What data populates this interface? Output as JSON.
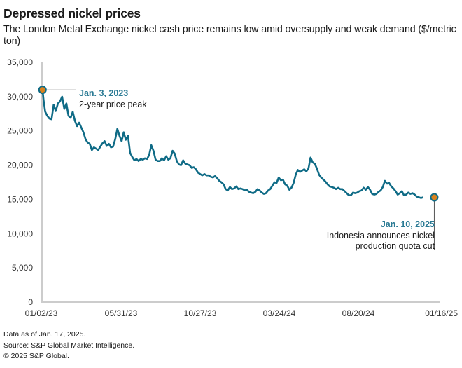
{
  "header": {
    "title": "Depressed nickel prices",
    "subtitle": "The London Metal Exchange nickel cash price remains low amid oversupply and weak demand ($/metric ton)"
  },
  "footer": {
    "line1": "Data as of Jan. 17, 2025.",
    "line2": "Source: S&P Global Market Intelligence.",
    "line3": "© 2025 S&P Global."
  },
  "colors": {
    "line": "#0f6b86",
    "marker_fill": "#d9821e",
    "marker_stroke": "#0f6b86",
    "axis": "#cccccc",
    "annotation_date": "#2a7a94"
  },
  "chart_data": {
    "type": "line",
    "title": "Depressed nickel prices",
    "subtitle": "The London Metal Exchange nickel cash price remains low amid oversupply and weak demand ($/metric ton)",
    "xlabel": "",
    "ylabel": "$/metric ton",
    "ylim": [
      0,
      35000
    ],
    "yticks": [
      0,
      5000,
      10000,
      15000,
      20000,
      25000,
      30000,
      35000
    ],
    "ytick_labels": [
      "0",
      "5,000",
      "10,000",
      "15,000",
      "20,000",
      "25,000",
      "30,000",
      "35,000"
    ],
    "xtick_labels": [
      "01/02/23",
      "05/31/23",
      "10/27/23",
      "03/24/24",
      "08/20/24",
      "01/16/25"
    ],
    "xlim_days": [
      0,
      745
    ],
    "grid": false,
    "legend": "none",
    "series": [
      {
        "name": "LME nickel cash price",
        "x_days": [
          1,
          3,
          6,
          10,
          14,
          18,
          22,
          26,
          30,
          34,
          38,
          42,
          46,
          50,
          54,
          58,
          62,
          66,
          70,
          74,
          78,
          82,
          86,
          90,
          94,
          98,
          102,
          106,
          110,
          114,
          118,
          122,
          126,
          130,
          134,
          138,
          142,
          146,
          150,
          154,
          158,
          162,
          166,
          170,
          174,
          178,
          182,
          186,
          190,
          194,
          198,
          202,
          206,
          210,
          214,
          218,
          222,
          226,
          230,
          234,
          238,
          242,
          246,
          250,
          254,
          258,
          262,
          266,
          270,
          274,
          278,
          282,
          286,
          290,
          294,
          298,
          302,
          306,
          310,
          314,
          318,
          322,
          326,
          330,
          334,
          338,
          342,
          346,
          350,
          354,
          358,
          362,
          366,
          370,
          374,
          378,
          382,
          386,
          390,
          394,
          398,
          402,
          406,
          410,
          414,
          418,
          422,
          426,
          430,
          434,
          438,
          442,
          446,
          450,
          454,
          458,
          462,
          466,
          470,
          474,
          478,
          482,
          486,
          490,
          494,
          498,
          502,
          506,
          510,
          514,
          518,
          522,
          526,
          530,
          534,
          538,
          542,
          546,
          550,
          554,
          558,
          562,
          566,
          570,
          574,
          578,
          582,
          586,
          590,
          594,
          598,
          602,
          606,
          610,
          614,
          618,
          622,
          626,
          630,
          634,
          638,
          642,
          646,
          650,
          654,
          658,
          662,
          666,
          670,
          674,
          678,
          682,
          686,
          690,
          694,
          698,
          702,
          706,
          710,
          714,
          718,
          722,
          726,
          730,
          734,
          738
        ],
        "values": [
          31000,
          29500,
          27800,
          27200,
          26800,
          26700,
          28800,
          27900,
          29000,
          29300,
          30000,
          28200,
          29000,
          27200,
          26900,
          27800,
          26500,
          25700,
          26200,
          25500,
          24800,
          23800,
          23300,
          23100,
          22200,
          22600,
          22400,
          22200,
          22700,
          23200,
          23500,
          22800,
          23100,
          22600,
          22700,
          23800,
          25300,
          24300,
          23500,
          24800,
          23700,
          24300,
          21800,
          21200,
          20700,
          20900,
          20600,
          20900,
          20800,
          21000,
          20900,
          21500,
          22900,
          22100,
          20800,
          20600,
          20600,
          21000,
          20700,
          21300,
          20800,
          21000,
          22100,
          21700,
          20600,
          20100,
          20000,
          20700,
          20200,
          20100,
          20000,
          19600,
          19700,
          19400,
          18900,
          18700,
          18500,
          18700,
          18500,
          18500,
          18300,
          18200,
          18400,
          18100,
          17700,
          17500,
          17200,
          16500,
          16300,
          16800,
          16500,
          16600,
          16900,
          16500,
          16600,
          16500,
          16300,
          16400,
          16100,
          16000,
          15900,
          16100,
          16500,
          16300,
          16000,
          15800,
          15900,
          16300,
          16500,
          17000,
          17500,
          17400,
          18200,
          17800,
          17900,
          17200,
          17000,
          16400,
          16700,
          17400,
          18600,
          19300,
          19000,
          19200,
          19400,
          19100,
          19500,
          21100,
          20400,
          20200,
          19500,
          18600,
          18200,
          17900,
          17600,
          17200,
          16900,
          16800,
          16700,
          16500,
          16700,
          16500,
          16500,
          16200,
          15900,
          15600,
          15600,
          16000,
          15900,
          16000,
          16200,
          16300,
          16700,
          16400,
          16800,
          16400,
          15800,
          15700,
          15800,
          16100,
          16300,
          16800,
          17700,
          17300,
          17400,
          16900,
          16600,
          16200,
          15700,
          15900,
          16200,
          15600,
          15700,
          16000,
          15800,
          15900,
          15700,
          15400,
          15300,
          15200,
          15300
        ]
      }
    ],
    "annotations": [
      {
        "date": "Jan. 3, 2023",
        "text": "2-year price peak",
        "x_day": 1,
        "value": 31000
      },
      {
        "date": "Jan. 10, 2025",
        "text": "Indonesia announces nickel production quota cut",
        "x_day": 739,
        "value": 15300
      }
    ]
  },
  "annotations": {
    "peak_date": "Jan. 3, 2023",
    "peak_text": "2-year price peak",
    "end_date": "Jan. 10, 2025",
    "end_text_line1": "Indonesia announces nickel",
    "end_text_line2": "production quota cut"
  }
}
